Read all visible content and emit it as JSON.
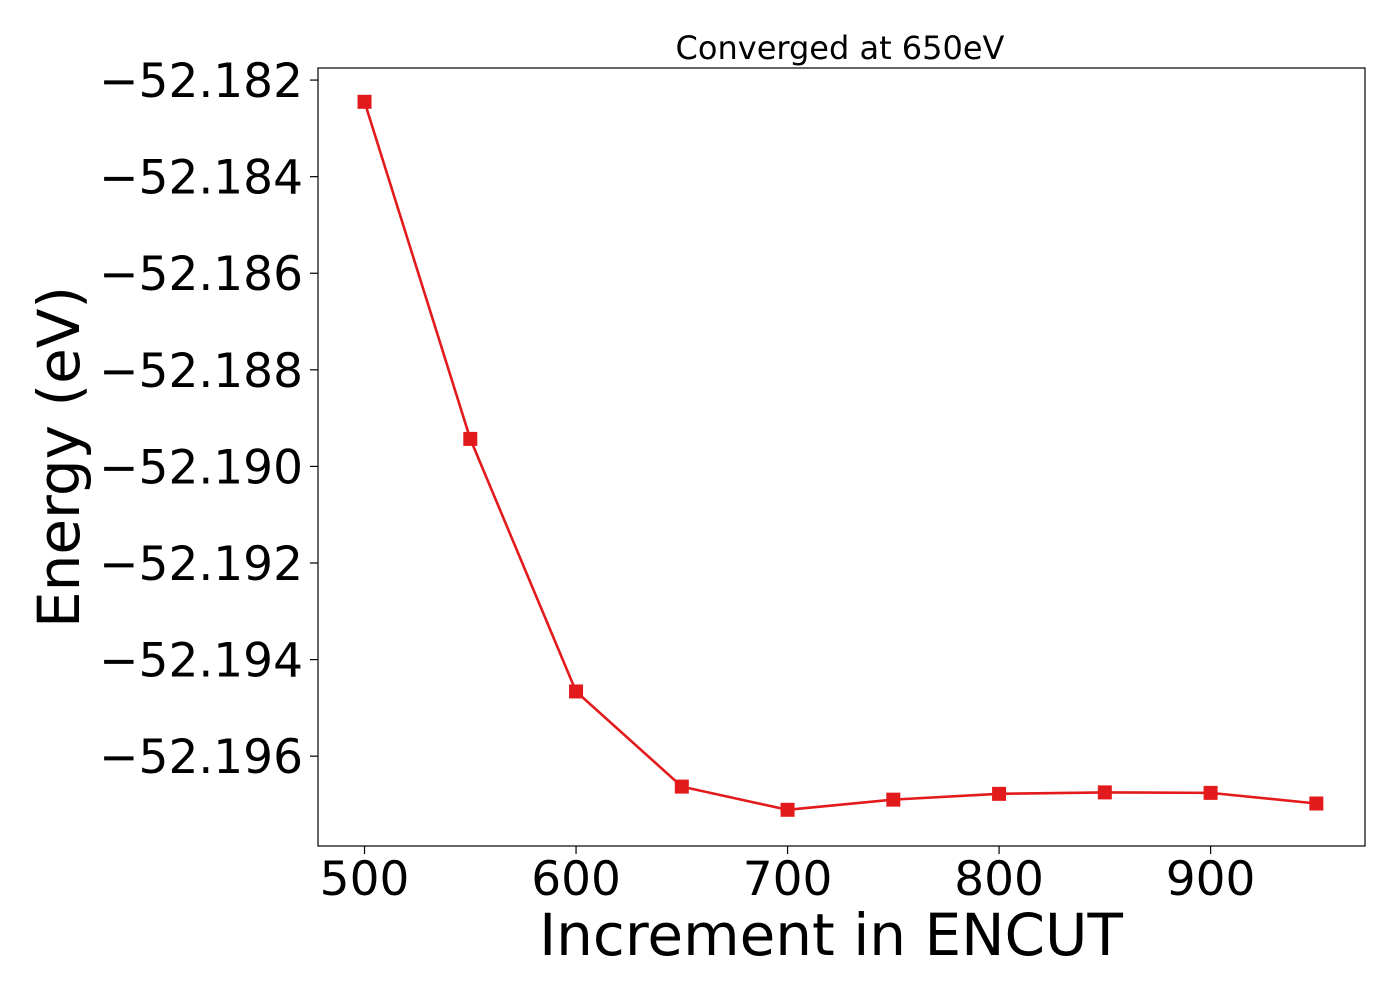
{
  "chart_data": {
    "type": "line",
    "title": "Converged at 650eV",
    "xlabel": "Increment in ENCUT",
    "ylabel": "Energy (eV)",
    "x": [
      500,
      550,
      600,
      650,
      700,
      750,
      800,
      850,
      900,
      950
    ],
    "series": [
      {
        "values": [
          -52.18245,
          -52.18943,
          -52.19466,
          -52.19663,
          -52.19711,
          -52.1969,
          -52.19678,
          -52.19675,
          -52.19676,
          -52.19698
        ],
        "color": "#e31a1c",
        "marker": "square"
      }
    ],
    "xlim": [
      478,
      973
    ],
    "ylim": [
      -52.19786,
      -52.18175
    ],
    "xticks": [
      500,
      600,
      700,
      800,
      900
    ],
    "yticks": [
      -52.182,
      -52.184,
      -52.186,
      -52.188,
      -52.19,
      -52.192,
      -52.194,
      -52.196
    ],
    "ytick_labels": [
      "−52.182",
      "−52.184",
      "−52.186",
      "−52.188",
      "−52.190",
      "−52.192",
      "−52.194",
      "−52.196"
    ],
    "grid": false,
    "legend": "none"
  }
}
